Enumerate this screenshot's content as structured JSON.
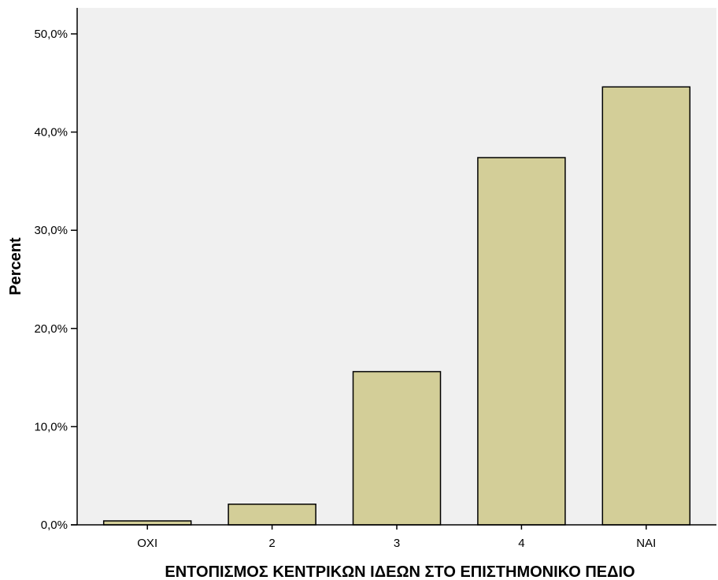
{
  "chart_data": {
    "type": "bar",
    "categories": [
      "ΟΧΙ",
      "2",
      "3",
      "4",
      "ΝΑΙ"
    ],
    "values": [
      0.4,
      2.1,
      15.6,
      37.4,
      44.6
    ],
    "title": "",
    "xlabel": "ΕΝΤΟΠΙΣΜΟΣ ΚΕΝΤΡΙΚΩΝ ΙΔΕΩΝ ΣΤΟ ΕΠΙΣΤΗΜΟΝΙΚΟ ΠΕΔΙΟ",
    "ylabel": "Percent",
    "ylim": [
      0,
      52.5
    ],
    "yticks": [
      0,
      10,
      20,
      30,
      40,
      50
    ],
    "ytick_labels": [
      "0,0%",
      "10,0%",
      "20,0%",
      "30,0%",
      "40,0%",
      "50,0%"
    ],
    "grid": false,
    "legend": "none"
  },
  "colors": {
    "plot_background": "#f0f0f0",
    "bar_fill": "#d3ce98",
    "bar_stroke": "#000000",
    "axis": "#000000"
  }
}
